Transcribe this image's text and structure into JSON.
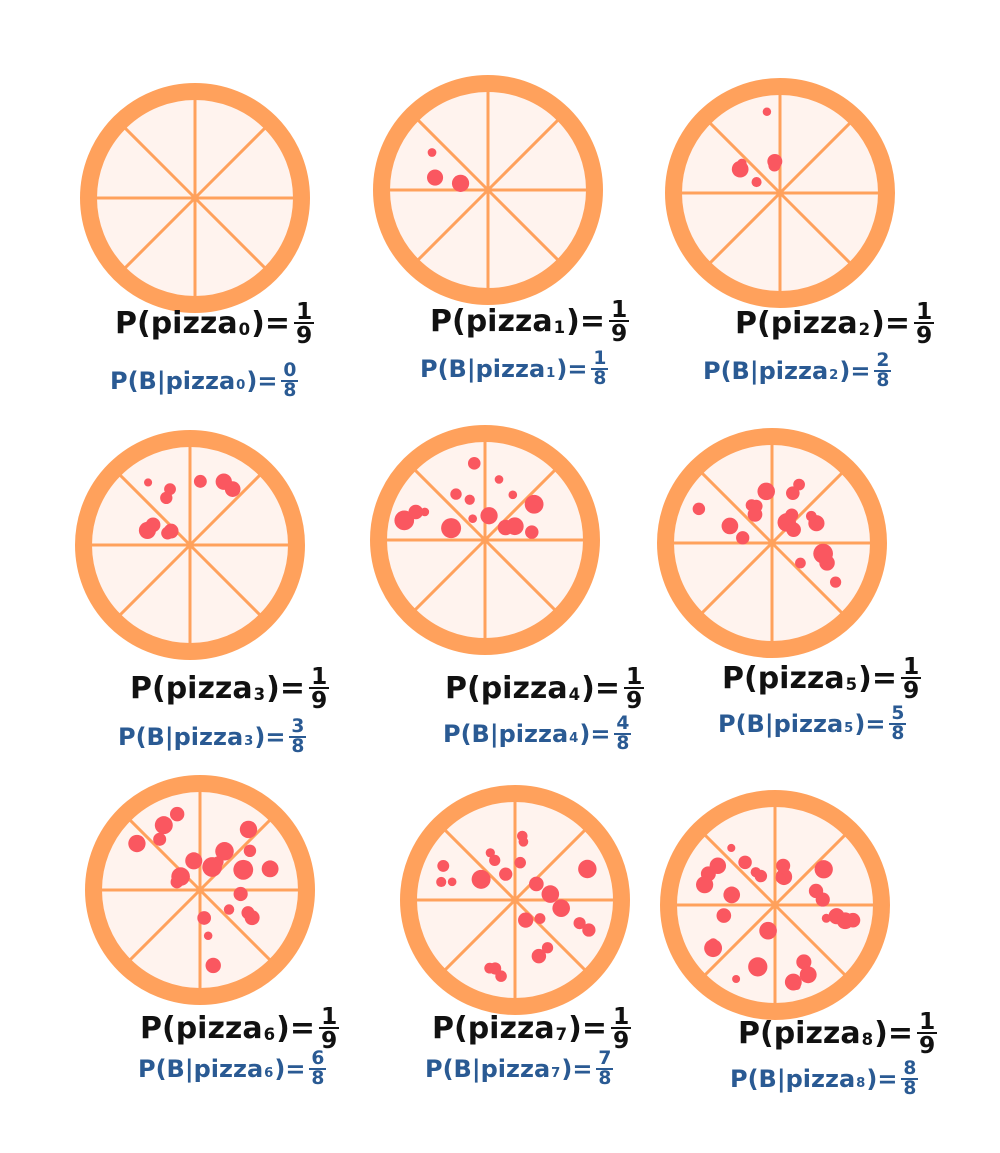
{
  "colors": {
    "crust": "#ffa15c",
    "slice_lines": "#ffa15c",
    "cheese": "#fff3ee",
    "pepperoni": "#fa5760",
    "prior_text": "#111111",
    "likelihood_text": "#2a5a93"
  },
  "pizzas": [
    {
      "prior_prefix": "P(pizza",
      "index": "0",
      "prior_suffix": ")=",
      "prior_num": "1",
      "prior_den": "9",
      "like_prefix": "P(B|pizza",
      "like_suffix": ")=",
      "like_num": "0",
      "like_den": "8",
      "pepperoni_slices": 0
    },
    {
      "prior_prefix": "P(pizza",
      "index": "1",
      "prior_suffix": ")=",
      "prior_num": "1",
      "prior_den": "9",
      "like_prefix": "P(B|pizza",
      "like_suffix": ")=",
      "like_num": "1",
      "like_den": "8",
      "pepperoni_slices": 1
    },
    {
      "prior_prefix": "P(pizza",
      "index": "2",
      "prior_suffix": ")=",
      "prior_num": "1",
      "prior_den": "9",
      "like_prefix": "P(B|pizza",
      "like_suffix": ")=",
      "like_num": "2",
      "like_den": "8",
      "pepperoni_slices": 2
    },
    {
      "prior_prefix": "P(pizza",
      "index": "3",
      "prior_suffix": ")=",
      "prior_num": "1",
      "prior_den": "9",
      "like_prefix": "P(B|pizza",
      "like_suffix": ")=",
      "like_num": "3",
      "like_den": "8",
      "pepperoni_slices": 3
    },
    {
      "prior_prefix": "P(pizza",
      "index": "4",
      "prior_suffix": ")=",
      "prior_num": "1",
      "prior_den": "9",
      "like_prefix": "P(B|pizza",
      "like_suffix": ")=",
      "like_num": "4",
      "like_den": "8",
      "pepperoni_slices": 4
    },
    {
      "prior_prefix": "P(pizza",
      "index": "5",
      "prior_suffix": ")=",
      "prior_num": "1",
      "prior_den": "9",
      "like_prefix": "P(B|pizza",
      "like_suffix": ")=",
      "like_num": "5",
      "like_den": "8",
      "pepperoni_slices": 5
    },
    {
      "prior_prefix": "P(pizza",
      "index": "6",
      "prior_suffix": ")=",
      "prior_num": "1",
      "prior_den": "9",
      "like_prefix": "P(B|pizza",
      "like_suffix": ")=",
      "like_num": "6",
      "like_den": "8",
      "pepperoni_slices": 6
    },
    {
      "prior_prefix": "P(pizza",
      "index": "7",
      "prior_suffix": ")=",
      "prior_num": "1",
      "prior_den": "9",
      "like_prefix": "P(B|pizza",
      "like_suffix": ")=",
      "like_num": "7",
      "like_den": "8",
      "pepperoni_slices": 7
    },
    {
      "prior_prefix": "P(pizza",
      "index": "8",
      "prior_suffix": ")=",
      "prior_num": "1",
      "prior_den": "9",
      "like_prefix": "P(B|pizza",
      "like_suffix": ")=",
      "like_num": "8",
      "like_den": "8",
      "pepperoni_slices": 8
    }
  ]
}
